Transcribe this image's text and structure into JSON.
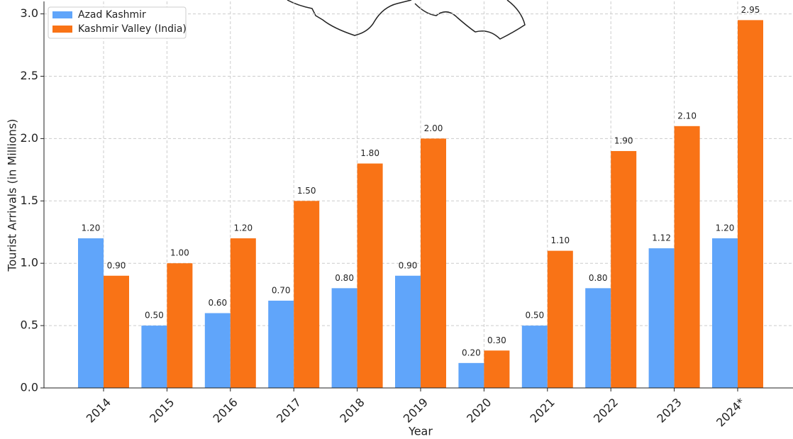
{
  "chart_data": {
    "type": "bar",
    "x_label": "Year",
    "y_label": "Tourist Arrivals (in Millions)",
    "categories": [
      "2014",
      "2015",
      "2016",
      "2017",
      "2018",
      "2019",
      "2020",
      "2021",
      "2022",
      "2023",
      "2024*"
    ],
    "series": [
      {
        "name": "Azad Kashmir",
        "color": "#60a5fa",
        "values": [
          1.2,
          0.5,
          0.6,
          0.7,
          0.8,
          0.9,
          0.2,
          0.5,
          0.8,
          1.12,
          1.2
        ],
        "value_labels": [
          "1.20",
          "0.50",
          "0.60",
          "0.70",
          "0.80",
          "0.90",
          "0.20",
          "0.50",
          "0.80",
          "1.12",
          "1.20"
        ]
      },
      {
        "name": "Kashmir Valley (India)",
        "color": "#f97316",
        "values": [
          0.9,
          1.0,
          1.2,
          1.5,
          1.8,
          2.0,
          0.3,
          1.1,
          1.9,
          2.1,
          2.95
        ],
        "value_labels": [
          "0.90",
          "1.00",
          "1.20",
          "1.50",
          "1.80",
          "2.00",
          "0.30",
          "1.10",
          "1.90",
          "2.10",
          "2.95"
        ]
      }
    ],
    "ylim": [
      0,
      3.1
    ],
    "yticks": [
      {
        "value": 0,
        "label": "0.0"
      },
      0.5,
      {
        "value": 1,
        "label": "1.0"
      },
      1.5,
      {
        "value": 2,
        "label": "2.0"
      },
      2.5,
      {
        "value": 3,
        "label": "3.0"
      }
    ],
    "grid": true,
    "legend": "upper left"
  }
}
